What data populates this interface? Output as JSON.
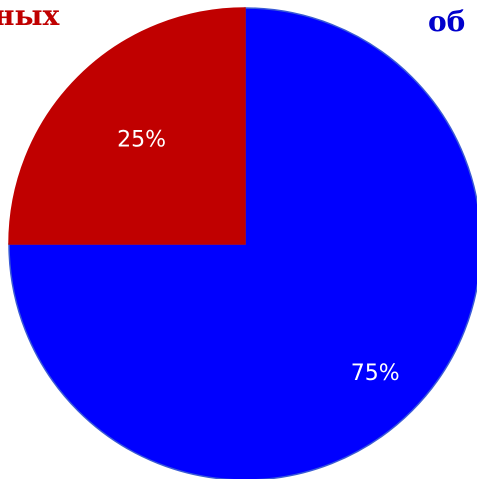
{
  "top_text_fragments": {
    "left": "ных",
    "right": "об"
  },
  "chart_data": {
    "type": "pie",
    "categories": [
      "",
      ""
    ],
    "values": [
      75,
      25
    ],
    "data_labels": [
      "75%",
      "25%"
    ],
    "colors": [
      "#0000ff",
      "#c00000"
    ],
    "start_angle_deg": 0,
    "direction": "clockwise",
    "legend": "none",
    "title": ""
  }
}
